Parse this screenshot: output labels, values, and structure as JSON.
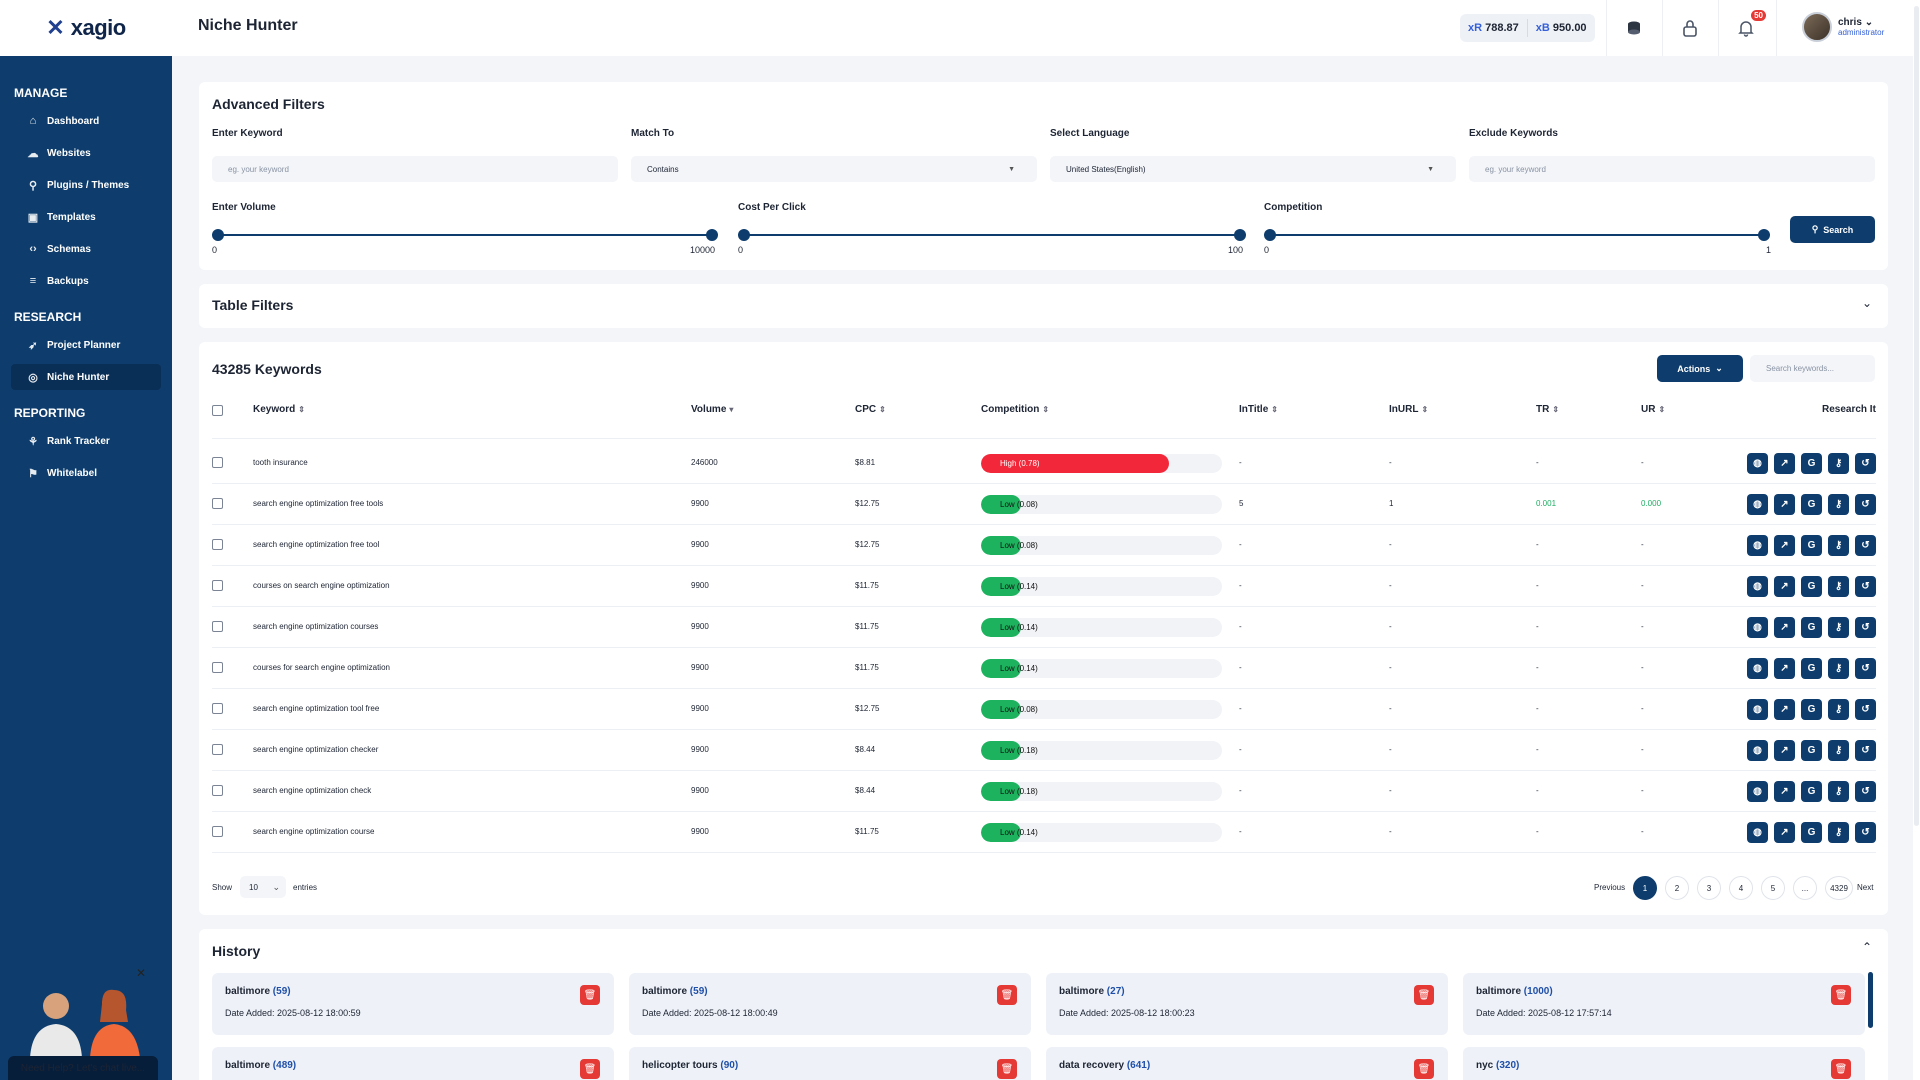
{
  "brand": {
    "name": "xagio"
  },
  "header": {
    "page_title": "Niche Hunter",
    "credit_r": "788.87",
    "credit_b": "950.00",
    "credit_r_prefix": "xR",
    "credit_b_prefix": "xB",
    "notifications": "50",
    "user_name": "chris",
    "user_role": "administrator"
  },
  "sidebar": {
    "sections": [
      {
        "title": "MANAGE",
        "items": [
          {
            "label": "Dashboard",
            "icon": "home-icon"
          },
          {
            "label": "Websites",
            "icon": "cloud-icon"
          },
          {
            "label": "Plugins / Themes",
            "icon": "plug-icon"
          },
          {
            "label": "Templates",
            "icon": "image-icon"
          },
          {
            "label": "Schemas",
            "icon": "code-icon"
          },
          {
            "label": "Backups",
            "icon": "database-icon"
          }
        ]
      },
      {
        "title": "RESEARCH",
        "items": [
          {
            "label": "Project Planner",
            "icon": "rocket-icon"
          },
          {
            "label": "Niche Hunter",
            "icon": "target-icon",
            "active": true
          }
        ]
      },
      {
        "title": "REPORTING",
        "items": [
          {
            "label": "Rank Tracker",
            "icon": "chart-icon"
          },
          {
            "label": "Whitelabel",
            "icon": "bookmark-icon"
          }
        ]
      }
    ],
    "help_label": "Need Help? Let's chat live..."
  },
  "filters": {
    "title": "Advanced Filters",
    "keyword_label": "Enter Keyword",
    "keyword_placeholder": "eg. your keyword",
    "match_label": "Match To",
    "match_value": "Contains",
    "language_label": "Select Language",
    "language_value": "United States(English)",
    "exclude_label": "Exclude Keywords",
    "exclude_placeholder": "eg. your keyword",
    "volume_label": "Enter Volume",
    "volume_min": "0",
    "volume_max": "10000",
    "cpc_label": "Cost Per Click",
    "cpc_min": "0",
    "cpc_max": "100",
    "competition_label": "Competition",
    "competition_min": "0",
    "competition_max": "1",
    "search_label": "Search"
  },
  "table_filters": {
    "title": "Table Filters"
  },
  "keywords": {
    "title": "43285 Keywords",
    "actions_label": "Actions",
    "search_placeholder": "Search keywords...",
    "columns": [
      "Keyword",
      "Volume",
      "CPC",
      "Competition",
      "InTitle",
      "InURL",
      "TR",
      "UR",
      "Research It"
    ],
    "rows": [
      {
        "keyword": "tooth insurance",
        "volume": "246000",
        "cpc": "$8.81",
        "comp_label": "High (0.78)",
        "comp": 0.78,
        "level": "high",
        "intitle": "-",
        "inurl": "-",
        "tr": "-",
        "ur": "-"
      },
      {
        "keyword": "search engine optimization free tools",
        "volume": "9900",
        "cpc": "$12.75",
        "comp_label": "Low (0.08)",
        "comp": 0.08,
        "level": "low",
        "intitle": "5",
        "inurl": "1",
        "tr": "0.001",
        "ur": "0.000"
      },
      {
        "keyword": "search engine optimization free tool",
        "volume": "9900",
        "cpc": "$12.75",
        "comp_label": "Low (0.08)",
        "comp": 0.08,
        "level": "low",
        "intitle": "-",
        "inurl": "-",
        "tr": "-",
        "ur": "-"
      },
      {
        "keyword": "courses on search engine optimization",
        "volume": "9900",
        "cpc": "$11.75",
        "comp_label": "Low (0.14)",
        "comp": 0.14,
        "level": "low",
        "intitle": "-",
        "inurl": "-",
        "tr": "-",
        "ur": "-"
      },
      {
        "keyword": "search engine optimization courses",
        "volume": "9900",
        "cpc": "$11.75",
        "comp_label": "Low (0.14)",
        "comp": 0.14,
        "level": "low",
        "intitle": "-",
        "inurl": "-",
        "tr": "-",
        "ur": "-"
      },
      {
        "keyword": "courses for search engine optimization",
        "volume": "9900",
        "cpc": "$11.75",
        "comp_label": "Low (0.14)",
        "comp": 0.14,
        "level": "low",
        "intitle": "-",
        "inurl": "-",
        "tr": "-",
        "ur": "-"
      },
      {
        "keyword": "search engine optimization tool free",
        "volume": "9900",
        "cpc": "$12.75",
        "comp_label": "Low (0.08)",
        "comp": 0.08,
        "level": "low",
        "intitle": "-",
        "inurl": "-",
        "tr": "-",
        "ur": "-"
      },
      {
        "keyword": "search engine optimization checker",
        "volume": "9900",
        "cpc": "$8.44",
        "comp_label": "Low (0.18)",
        "comp": 0.18,
        "level": "low",
        "intitle": "-",
        "inurl": "-",
        "tr": "-",
        "ur": "-"
      },
      {
        "keyword": "search engine optimization check",
        "volume": "9900",
        "cpc": "$8.44",
        "comp_label": "Low (0.18)",
        "comp": 0.18,
        "level": "low",
        "intitle": "-",
        "inurl": "-",
        "tr": "-",
        "ur": "-"
      },
      {
        "keyword": "search engine optimization course",
        "volume": "9900",
        "cpc": "$11.75",
        "comp_label": "Low (0.14)",
        "comp": 0.14,
        "level": "low",
        "intitle": "-",
        "inurl": "-",
        "tr": "-",
        "ur": "-"
      }
    ],
    "row_actions": [
      "globe-icon",
      "trend-icon",
      "google-icon",
      "key-icon",
      "history-icon"
    ],
    "show_label": "Show",
    "entries_value": "10",
    "entries_label": "entries",
    "pagination": {
      "previous": "Previous",
      "pages": [
        "1",
        "2",
        "3",
        "4",
        "5",
        "...",
        "4329"
      ],
      "next": "Next",
      "current": "1"
    }
  },
  "history": {
    "title": "History",
    "items": [
      {
        "name": "baltimore",
        "count": "(59)",
        "date": "Date Added: 2025-08-12 18:00:59"
      },
      {
        "name": "baltimore",
        "count": "(59)",
        "date": "Date Added: 2025-08-12 18:00:49"
      },
      {
        "name": "baltimore",
        "count": "(27)",
        "date": "Date Added: 2025-08-12 18:00:23"
      },
      {
        "name": "baltimore",
        "count": "(1000)",
        "date": "Date Added: 2025-08-12 17:57:14"
      },
      {
        "name": "baltimore",
        "count": "(489)",
        "date": ""
      },
      {
        "name": "helicopter tours",
        "count": "(90)",
        "date": ""
      },
      {
        "name": "data recovery",
        "count": "(641)",
        "date": ""
      },
      {
        "name": "nyc",
        "count": "(320)",
        "date": ""
      }
    ]
  },
  "colors": {
    "primary": "#0e3d6d",
    "high": "#f2283a",
    "low": "#1db35e",
    "danger": "#e53935"
  }
}
